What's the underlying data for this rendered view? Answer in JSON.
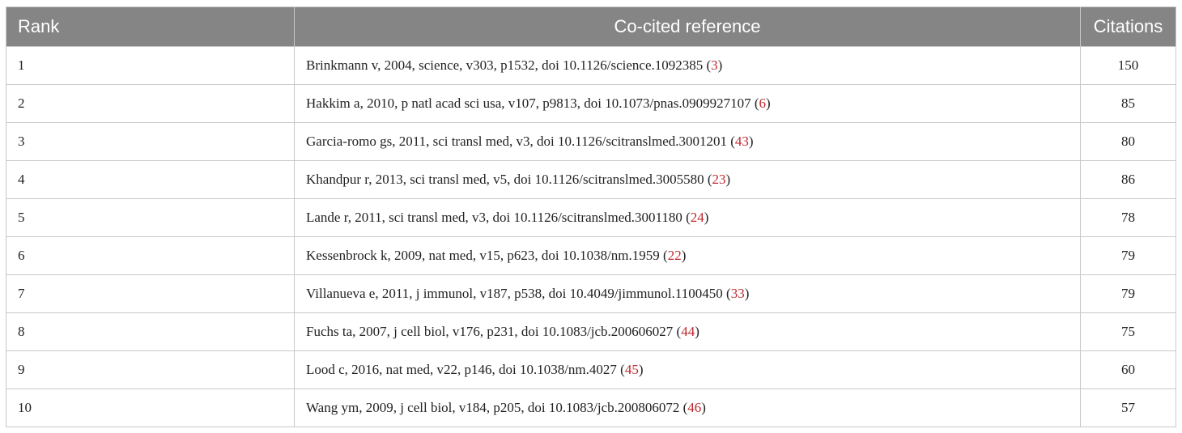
{
  "table": {
    "header": [
      "Rank",
      "Co-cited reference",
      "Citations"
    ],
    "rows": [
      {
        "rank": 1,
        "reference": "Brinkmann v, 2004, science, v303, p1532, doi 10.1126/science.1092385 (",
        "ref_link": "3",
        "reference_end": ")",
        "citations": 150
      },
      {
        "rank": 2,
        "reference": "Hakkim a, 2010, p natl acad sci usa, v107, p9813, doi 10.1073/pnas.0909927107 (",
        "ref_link": "6",
        "reference_end": ")",
        "citations": 85
      },
      {
        "rank": 3,
        "reference": "Garcia-romo gs, 2011, sci transl med, v3, doi 10.1126/scitranslmed.3001201 (",
        "ref_link": "43",
        "reference_end": ")",
        "citations": 80
      },
      {
        "rank": 4,
        "reference": "Khandpur r, 2013, sci transl med, v5, doi 10.1126/scitranslmed.3005580 (",
        "ref_link": "23",
        "reference_end": ")",
        "citations": 86
      },
      {
        "rank": 5,
        "reference": "Lande r, 2011, sci transl med, v3, doi 10.1126/scitranslmed.3001180 (",
        "ref_link": "24",
        "reference_end": ")",
        "citations": 78
      },
      {
        "rank": 6,
        "reference": "Kessenbrock k, 2009, nat med, v15, p623, doi 10.1038/nm.1959 (",
        "ref_link": "22",
        "reference_end": ")",
        "citations": 79
      },
      {
        "rank": 7,
        "reference": "Villanueva e, 2011, j immunol, v187, p538, doi 10.4049/jimmunol.1100450 (",
        "ref_link": "33",
        "reference_end": ")",
        "citations": 79
      },
      {
        "rank": 8,
        "reference": "Fuchs ta, 2007, j cell biol, v176, p231, doi 10.1083/jcb.200606027 (",
        "ref_link": "44",
        "reference_end": ")",
        "citations": 75
      },
      {
        "rank": 9,
        "reference": "Lood c, 2016, nat med, v22, p146, doi 10.1038/nm.4027 (",
        "ref_link": "45",
        "reference_end": ")",
        "citations": 60
      },
      {
        "rank": 10,
        "reference": "Wang ym, 2009, j cell biol, v184, p205, doi 10.1083/jcb.200806072 (",
        "ref_link": "46",
        "reference_end": ")",
        "citations": 57
      }
    ]
  }
}
